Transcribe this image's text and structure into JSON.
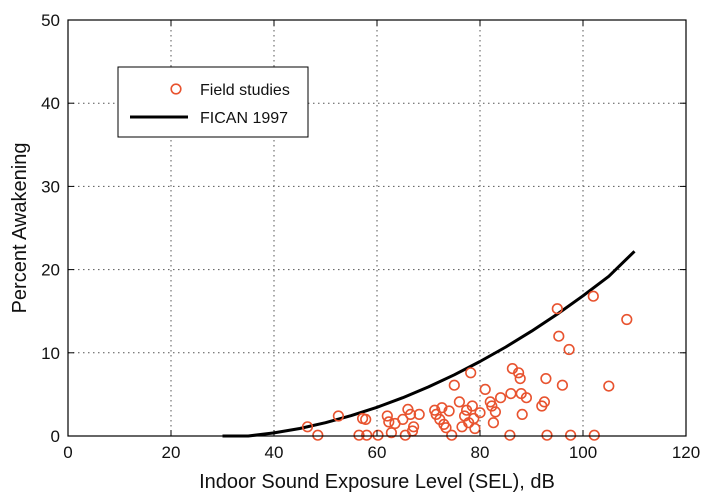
{
  "chart_data": {
    "type": "scatter",
    "title": "",
    "xlabel": "Indoor Sound Exposure Level (SEL), dB",
    "ylabel": "Percent Awakening",
    "xlim": [
      0,
      120
    ],
    "ylim": [
      0,
      50
    ],
    "xticks": [
      0,
      20,
      40,
      60,
      80,
      100,
      120
    ],
    "yticks": [
      0,
      10,
      20,
      30,
      40,
      50
    ],
    "grid": true,
    "legend_position": "top-left",
    "series": [
      {
        "name": "Field studies",
        "kind": "scatter",
        "marker": "open-circle",
        "color": "#e8532f",
        "points": [
          [
            46.5,
            1.1
          ],
          [
            48.5,
            0.1
          ],
          [
            52.5,
            2.4
          ],
          [
            56.5,
            0.1
          ],
          [
            57.2,
            2.1
          ],
          [
            57.8,
            2.0
          ],
          [
            58.0,
            0.1
          ],
          [
            60.2,
            0.1
          ],
          [
            62.0,
            2.4
          ],
          [
            62.3,
            1.7
          ],
          [
            62.8,
            0.4
          ],
          [
            63.5,
            1.5
          ],
          [
            65.0,
            2.0
          ],
          [
            65.5,
            0.1
          ],
          [
            66.0,
            3.2
          ],
          [
            66.5,
            2.6
          ],
          [
            66.9,
            0.6
          ],
          [
            67.1,
            1.1
          ],
          [
            68.2,
            2.6
          ],
          [
            71.2,
            3.1
          ],
          [
            71.5,
            2.6
          ],
          [
            72.2,
            2.0
          ],
          [
            72.6,
            3.4
          ],
          [
            73.0,
            1.4
          ],
          [
            73.4,
            1.0
          ],
          [
            74.0,
            3.0
          ],
          [
            74.5,
            0.1
          ],
          [
            75.0,
            6.1
          ],
          [
            76.0,
            4.1
          ],
          [
            76.5,
            1.1
          ],
          [
            77.0,
            2.4
          ],
          [
            77.4,
            3.1
          ],
          [
            77.8,
            1.6
          ],
          [
            78.2,
            7.6
          ],
          [
            78.5,
            3.6
          ],
          [
            78.8,
            2.1
          ],
          [
            79.0,
            0.9
          ],
          [
            80.0,
            2.8
          ],
          [
            81.0,
            5.6
          ],
          [
            82.0,
            4.1
          ],
          [
            82.3,
            3.6
          ],
          [
            82.6,
            1.6
          ],
          [
            83.0,
            2.9
          ],
          [
            84.0,
            4.6
          ],
          [
            85.8,
            0.1
          ],
          [
            86.0,
            5.1
          ],
          [
            86.3,
            8.1
          ],
          [
            87.5,
            7.6
          ],
          [
            87.8,
            6.9
          ],
          [
            88.0,
            5.1
          ],
          [
            88.2,
            2.6
          ],
          [
            89.0,
            4.6
          ],
          [
            92.0,
            3.6
          ],
          [
            92.5,
            4.1
          ],
          [
            92.8,
            6.9
          ],
          [
            93.0,
            0.1
          ],
          [
            95.0,
            15.3
          ],
          [
            95.3,
            12.0
          ],
          [
            96.0,
            6.1
          ],
          [
            97.3,
            10.4
          ],
          [
            97.6,
            0.1
          ],
          [
            102.0,
            16.8
          ],
          [
            102.2,
            0.1
          ],
          [
            105.0,
            6.0
          ],
          [
            108.5,
            14.0
          ]
        ]
      },
      {
        "name": "FICAN 1997",
        "kind": "line",
        "color": "#000000",
        "points": [
          [
            30,
            0.0
          ],
          [
            35,
            0.0
          ],
          [
            40,
            0.37
          ],
          [
            45,
            0.9
          ],
          [
            50,
            1.6
          ],
          [
            55,
            2.45
          ],
          [
            60,
            3.45
          ],
          [
            65,
            4.6
          ],
          [
            70,
            5.9
          ],
          [
            75,
            7.35
          ],
          [
            80,
            8.95
          ],
          [
            85,
            10.7
          ],
          [
            90,
            12.6
          ],
          [
            95,
            14.65
          ],
          [
            100,
            16.85
          ],
          [
            105,
            19.2
          ],
          [
            110,
            22.2
          ]
        ]
      }
    ]
  }
}
